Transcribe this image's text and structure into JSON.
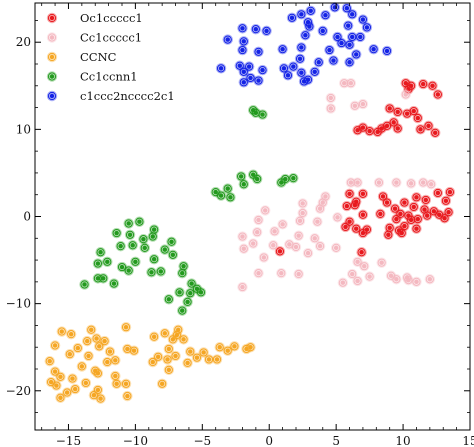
{
  "chart_data": {
    "type": "scatter",
    "title": "",
    "xlabel": "",
    "ylabel": "",
    "xlim": [
      -17.5,
      15
    ],
    "ylim": [
      -24.5,
      24.5
    ],
    "xticks": [
      -15,
      -10,
      -5,
      0,
      5,
      10,
      15
    ],
    "yticks": [
      -20,
      -10,
      0,
      10,
      20
    ],
    "xtick_labels": [
      "−15",
      "−10",
      "−5",
      "0",
      "5",
      "10",
      "15"
    ],
    "ytick_labels": [
      "−20",
      "−10",
      "0",
      "10",
      "20"
    ],
    "grid": false,
    "legend": {
      "position": "top-left"
    },
    "series": [
      {
        "name": "Oc1ccccc1",
        "color": "#e8191e",
        "points": [
          [
            10.2,
            15.3
          ],
          [
            10.6,
            15.0
          ],
          [
            11.5,
            15.2
          ],
          [
            12.2,
            15.0
          ],
          [
            10.4,
            14.6
          ],
          [
            12.6,
            14.0
          ],
          [
            9.0,
            12.4
          ],
          [
            9.6,
            12.0
          ],
          [
            10.3,
            11.8
          ],
          [
            10.8,
            12.1
          ],
          [
            11.1,
            11.3
          ],
          [
            9.3,
            10.8
          ],
          [
            8.4,
            10.1
          ],
          [
            7.5,
            9.8
          ],
          [
            7.0,
            10.2
          ],
          [
            8.8,
            10.4
          ],
          [
            9.6,
            10.1
          ],
          [
            11.3,
            10.0
          ],
          [
            11.9,
            10.4
          ],
          [
            12.4,
            9.6
          ],
          [
            8.1,
            9.7
          ],
          [
            6.6,
            9.9
          ],
          [
            6.0,
            2.6
          ],
          [
            7.0,
            2.6
          ],
          [
            8.5,
            2.3
          ],
          [
            11.0,
            2.2
          ],
          [
            12.6,
            2.7
          ],
          [
            13.5,
            2.8
          ],
          [
            6.5,
            1.7
          ],
          [
            8.8,
            1.6
          ],
          [
            10.1,
            1.6
          ],
          [
            11.7,
            1.9
          ],
          [
            13.2,
            1.8
          ],
          [
            5.8,
            1.2
          ],
          [
            6.4,
            1.3
          ],
          [
            9.4,
            0.9
          ],
          [
            10.8,
            1.1
          ],
          [
            11.6,
            0.8
          ],
          [
            12.3,
            0.6
          ],
          [
            13.4,
            0.5
          ],
          [
            7.0,
            0.2
          ],
          [
            8.3,
            0.3
          ],
          [
            9.8,
            0.3
          ],
          [
            10.4,
            0.1
          ],
          [
            11.8,
            0.1
          ],
          [
            12.7,
            0.2
          ],
          [
            6.0,
            -0.6
          ],
          [
            9.5,
            -0.3
          ],
          [
            10.6,
            -0.4
          ],
          [
            11.1,
            -0.3
          ],
          [
            13.1,
            -0.2
          ],
          [
            5.7,
            -1.2
          ],
          [
            6.5,
            -1.4
          ],
          [
            7.3,
            -1.5
          ],
          [
            9.0,
            -1.3
          ],
          [
            10.1,
            -1.1
          ],
          [
            11.0,
            -1.4
          ],
          [
            9.7,
            -1.6
          ],
          [
            7.0,
            -1.9
          ],
          [
            8.9,
            -2.1
          ],
          [
            9.9,
            -1.9
          ],
          [
            0.8,
            -4.0
          ],
          [
            6.9,
            -4.1
          ]
        ]
      },
      {
        "name": "Cc1ccccc1",
        "color": "#f4b8c0",
        "points": [
          [
            5.6,
            15.3
          ],
          [
            6.1,
            15.3
          ],
          [
            4.6,
            13.6
          ],
          [
            6.4,
            12.7
          ],
          [
            10.2,
            14.0
          ],
          [
            4.6,
            12.4
          ],
          [
            7.0,
            12.9
          ],
          [
            6.1,
            3.9
          ],
          [
            6.6,
            3.9
          ],
          [
            8.2,
            3.9
          ],
          [
            9.5,
            3.9
          ],
          [
            10.6,
            3.8
          ],
          [
            11.5,
            3.9
          ],
          [
            12.1,
            3.7
          ],
          [
            4.2,
            2.3
          ],
          [
            4.0,
            1.6
          ],
          [
            2.5,
            1.5
          ],
          [
            2.5,
            0.4
          ],
          [
            3.8,
            0.9
          ],
          [
            -0.3,
            0.7
          ],
          [
            -0.8,
            -0.4
          ],
          [
            1.0,
            -0.9
          ],
          [
            2.3,
            -0.5
          ],
          [
            3.6,
            -0.6
          ],
          [
            5.1,
            -0.1
          ],
          [
            -0.9,
            -1.8
          ],
          [
            -2.0,
            -2.3
          ],
          [
            0.4,
            -1.7
          ],
          [
            2.2,
            -2.2
          ],
          [
            3.4,
            -2.5
          ],
          [
            -1.2,
            -3.1
          ],
          [
            0.3,
            -3.3
          ],
          [
            1.5,
            -3.2
          ],
          [
            -1.9,
            -3.7
          ],
          [
            2.0,
            -3.5
          ],
          [
            3.8,
            -3.4
          ],
          [
            5.0,
            -3.6
          ],
          [
            2.9,
            -4.2
          ],
          [
            -0.4,
            -4.7
          ],
          [
            6.6,
            -5.2
          ],
          [
            8.4,
            -5.3
          ],
          [
            7.1,
            -5.7
          ],
          [
            -0.8,
            -6.5
          ],
          [
            9.1,
            -6.8
          ],
          [
            10.3,
            -7.0
          ],
          [
            6.2,
            -6.6
          ],
          [
            7.5,
            -6.9
          ],
          [
            6.6,
            -7.4
          ],
          [
            9.5,
            -7.2
          ],
          [
            10.4,
            -7.3
          ],
          [
            11.0,
            -7.5
          ],
          [
            12.0,
            -7.2
          ],
          [
            -2.0,
            -8.1
          ],
          [
            5.5,
            -7.6
          ],
          [
            2.2,
            -6.6
          ],
          [
            0.9,
            -6.5
          ]
        ]
      },
      {
        "name": "CCNC",
        "color": "#f5a623",
        "points": [
          [
            -15.5,
            -13.2
          ],
          [
            -14.8,
            -13.5
          ],
          [
            -13.3,
            -13.0
          ],
          [
            -10.7,
            -12.7
          ],
          [
            -7.8,
            -13.4
          ],
          [
            -6.8,
            -13.0
          ],
          [
            -6.9,
            -13.6
          ],
          [
            -12.9,
            -14.0
          ],
          [
            -13.6,
            -14.3
          ],
          [
            -12.3,
            -14.3
          ],
          [
            -8.6,
            -13.8
          ],
          [
            -7.2,
            -14.1
          ],
          [
            -6.4,
            -14.1
          ],
          [
            -4.9,
            -15.6
          ],
          [
            -2.6,
            -14.9
          ],
          [
            -3.7,
            -15.0
          ],
          [
            -3.1,
            -15.4
          ],
          [
            -1.7,
            -15.2
          ],
          [
            -1.4,
            -15.0
          ],
          [
            -16.0,
            -14.8
          ],
          [
            -14.3,
            -15.1
          ],
          [
            -12.7,
            -14.9
          ],
          [
            -11.9,
            -15.5
          ],
          [
            -10.6,
            -15.2
          ],
          [
            -10.1,
            -15.4
          ],
          [
            -7.5,
            -15.2
          ],
          [
            -5.9,
            -15.5
          ],
          [
            -14.9,
            -15.8
          ],
          [
            -13.5,
            -16.0
          ],
          [
            -8.3,
            -16.1
          ],
          [
            -7.0,
            -16.0
          ],
          [
            -5.4,
            -16.2
          ],
          [
            -4.5,
            -16.4
          ],
          [
            -3.9,
            -16.4
          ],
          [
            -16.4,
            -16.6
          ],
          [
            -12.1,
            -16.7
          ],
          [
            -11.5,
            -16.5
          ],
          [
            -8.7,
            -16.7
          ],
          [
            -7.6,
            -16.4
          ],
          [
            -6.1,
            -16.8
          ],
          [
            -16.0,
            -17.8
          ],
          [
            -14.0,
            -17.2
          ],
          [
            -13.0,
            -17.7
          ],
          [
            -12.8,
            -18.0
          ],
          [
            -7.5,
            -17.6
          ],
          [
            -15.6,
            -18.4
          ],
          [
            -14.7,
            -18.6
          ],
          [
            -11.5,
            -18.3
          ],
          [
            -16.3,
            -19.0
          ],
          [
            -15.9,
            -19.4
          ],
          [
            -13.7,
            -19.1
          ],
          [
            -11.4,
            -19.2
          ],
          [
            -10.7,
            -19.2
          ],
          [
            -8.0,
            -19.2
          ],
          [
            -14.5,
            -19.8
          ],
          [
            -12.8,
            -19.9
          ],
          [
            -15.1,
            -20.2
          ],
          [
            -13.1,
            -20.5
          ],
          [
            -12.6,
            -20.9
          ],
          [
            -10.6,
            -20.6
          ],
          [
            -15.6,
            -20.8
          ]
        ]
      },
      {
        "name": "Cc1ccnn1",
        "color": "#239a1e",
        "points": [
          [
            -1.0,
            11.9
          ],
          [
            -0.5,
            11.7
          ],
          [
            -1.2,
            12.2
          ],
          [
            -1.2,
            4.8
          ],
          [
            -2.1,
            4.6
          ],
          [
            -0.9,
            4.3
          ],
          [
            1.2,
            4.3
          ],
          [
            1.8,
            4.4
          ],
          [
            0.9,
            3.9
          ],
          [
            -1.9,
            3.7
          ],
          [
            -3.1,
            3.2
          ],
          [
            -4.0,
            2.8
          ],
          [
            -3.6,
            2.4
          ],
          [
            -2.9,
            2.2
          ],
          [
            -10.5,
            -0.8
          ],
          [
            -9.7,
            -0.6
          ],
          [
            -8.6,
            -1.5
          ],
          [
            -11.4,
            -1.9
          ],
          [
            -10.4,
            -2.1
          ],
          [
            -8.7,
            -2.3
          ],
          [
            -9.4,
            -2.6
          ],
          [
            -7.3,
            -2.9
          ],
          [
            -11.1,
            -3.4
          ],
          [
            -10.2,
            -3.3
          ],
          [
            -9.3,
            -3.6
          ],
          [
            -7.8,
            -3.8
          ],
          [
            -7.2,
            -4.4
          ],
          [
            -12.6,
            -4.1
          ],
          [
            -12.8,
            -5.4
          ],
          [
            -12.1,
            -5.2
          ],
          [
            -10.0,
            -5.2
          ],
          [
            -8.6,
            -4.9
          ],
          [
            -6.4,
            -5.7
          ],
          [
            -11.0,
            -5.8
          ],
          [
            -10.5,
            -6.2
          ],
          [
            -8.8,
            -6.4
          ],
          [
            -8.1,
            -6.3
          ],
          [
            -6.5,
            -6.5
          ],
          [
            -12.4,
            -7.1
          ],
          [
            -12.8,
            -7.1
          ],
          [
            -11.6,
            -7.7
          ],
          [
            -13.8,
            -7.8
          ],
          [
            -5.8,
            -7.7
          ],
          [
            -5.4,
            -8.3
          ],
          [
            -6.7,
            -8.7
          ],
          [
            -5.9,
            -8.8
          ],
          [
            -5.1,
            -8.7
          ],
          [
            -6.1,
            -9.8
          ],
          [
            -7.5,
            -9.5
          ],
          [
            -6.5,
            -10.8
          ]
        ]
      },
      {
        "name": "c1ccc2ncccc2c1",
        "color": "#1423e6",
        "points": [
          [
            4.9,
            24.0
          ],
          [
            5.8,
            23.9
          ],
          [
            3.1,
            23.6
          ],
          [
            2.4,
            23.2
          ],
          [
            4.2,
            23.1
          ],
          [
            6.2,
            23.2
          ],
          [
            7.0,
            22.6
          ],
          [
            5.9,
            21.9
          ],
          [
            7.3,
            21.7
          ],
          [
            1.7,
            22.8
          ],
          [
            2.9,
            22.3
          ],
          [
            3.0,
            21.8
          ],
          [
            4.0,
            21.3
          ],
          [
            -2.0,
            21.6
          ],
          [
            -1.0,
            21.5
          ],
          [
            -0.2,
            21.3
          ],
          [
            2.7,
            20.8
          ],
          [
            6.2,
            20.6
          ],
          [
            6.8,
            20.6
          ],
          [
            5.1,
            20.6
          ],
          [
            5.4,
            19.9
          ],
          [
            6.0,
            19.7
          ],
          [
            4.5,
            19.1
          ],
          [
            -3.1,
            20.3
          ],
          [
            -1.9,
            20.1
          ],
          [
            2.4,
            19.4
          ],
          [
            7.8,
            19.2
          ],
          [
            8.8,
            19.0
          ],
          [
            -2.0,
            19.1
          ],
          [
            -0.8,
            18.9
          ],
          [
            1.0,
            19.2
          ],
          [
            2.3,
            18.1
          ],
          [
            6.5,
            18.6
          ],
          [
            4.8,
            17.9
          ],
          [
            6.0,
            17.7
          ],
          [
            3.7,
            17.7
          ],
          [
            -2.2,
            17.3
          ],
          [
            -1.5,
            17.2
          ],
          [
            -1.9,
            16.6
          ],
          [
            1.1,
            17.0
          ],
          [
            1.8,
            17.2
          ],
          [
            3.4,
            16.6
          ],
          [
            -0.5,
            16.8
          ],
          [
            -3.6,
            17.0
          ],
          [
            -1.4,
            15.9
          ],
          [
            1.4,
            16.2
          ],
          [
            2.6,
            15.5
          ],
          [
            2.9,
            15.7
          ],
          [
            -0.8,
            15.6
          ],
          [
            -1.9,
            15.4
          ],
          [
            2.4,
            16.5
          ]
        ]
      }
    ]
  }
}
